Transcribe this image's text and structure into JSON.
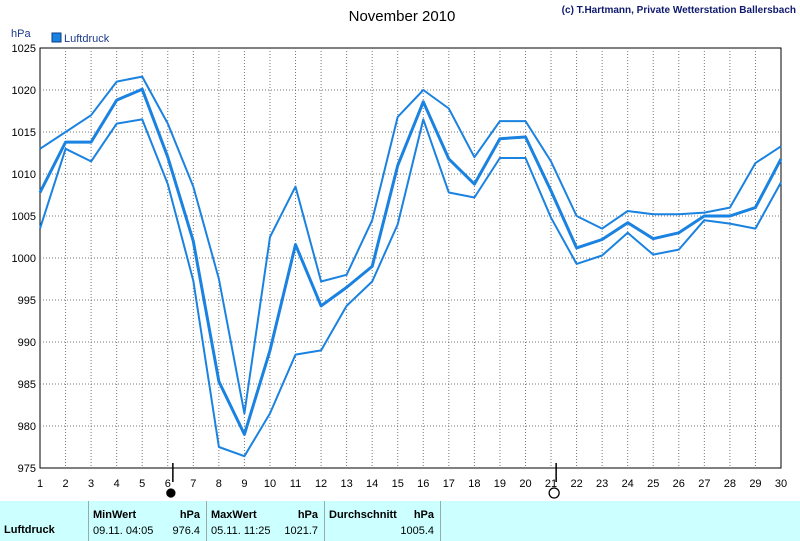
{
  "chart_data": {
    "type": "line",
    "title": "November 2010",
    "credit": "(c) T.Hartmann, Private Wetterstation Ballersbach",
    "ylabel": "hPa",
    "legend": "Luftdruck",
    "ylim": [
      975,
      1025
    ],
    "yticks": [
      975,
      980,
      985,
      990,
      995,
      1000,
      1005,
      1010,
      1015,
      1020,
      1025
    ],
    "x": [
      1,
      2,
      3,
      4,
      5,
      6,
      7,
      8,
      9,
      10,
      11,
      12,
      13,
      14,
      15,
      16,
      17,
      18,
      19,
      20,
      21,
      22,
      23,
      24,
      25,
      26,
      27,
      28,
      29,
      30
    ],
    "xlim": [
      1,
      30
    ],
    "series": [
      {
        "role": "max",
        "values": [
          1013.0,
          1015.0,
          1017.0,
          1021.0,
          1021.6,
          1016.0,
          1008.5,
          997.5,
          981.5,
          1002.5,
          1008.5,
          997.2,
          998.0,
          1004.5,
          1016.8,
          1020.0,
          1017.8,
          1012.0,
          1016.3,
          1016.3,
          1011.5,
          1005.0,
          1003.5,
          1005.6,
          1005.2,
          1005.2,
          1005.4,
          1006.0,
          1011.3,
          1013.3
        ]
      },
      {
        "role": "mean",
        "values": [
          1007.8,
          1013.8,
          1013.8,
          1018.8,
          1020.1,
          1012.0,
          1002.0,
          985.3,
          979.0,
          989.0,
          1001.6,
          994.3,
          996.5,
          999.0,
          1011.0,
          1018.6,
          1011.8,
          1008.8,
          1014.2,
          1014.4,
          1008.0,
          1001.2,
          1002.2,
          1004.2,
          1002.3,
          1003.0,
          1005.0,
          1005.0,
          1006.0,
          1011.8
        ]
      },
      {
        "role": "min",
        "values": [
          1003.5,
          1013.0,
          1011.5,
          1016.0,
          1016.5,
          1008.8,
          997.3,
          977.5,
          976.4,
          981.5,
          988.5,
          989.0,
          994.3,
          997.2,
          1004.0,
          1016.5,
          1007.8,
          1007.2,
          1011.9,
          1011.9,
          1004.8,
          999.3,
          1000.3,
          1003.0,
          1000.4,
          1001.0,
          1004.5,
          1004.1,
          1003.5,
          1009.0
        ]
      }
    ],
    "markers": [
      {
        "x": 6.2,
        "symbol": "new-moon"
      },
      {
        "x": 21.2,
        "symbol": "full-moon"
      }
    ],
    "line_color": "#1a82e0",
    "bg_color": "#ffffff"
  },
  "stats": {
    "row_label": "Luftdruck",
    "min_label": "MinWert",
    "min_unit": "hPa",
    "min_time": "09.11.  04:05",
    "min_value": "976.4",
    "max_label": "MaxWert",
    "max_unit": "hPa",
    "max_time": "05.11.  11:25",
    "max_value": "1021.7",
    "avg_label": "Durchschnitt",
    "avg_unit": "hPa",
    "avg_value": "1005.4",
    "panel_color": "#ccffff"
  }
}
